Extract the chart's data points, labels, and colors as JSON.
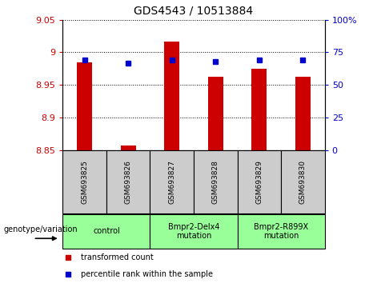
{
  "title": "GDS4543 / 10513884",
  "samples": [
    "GSM693825",
    "GSM693826",
    "GSM693827",
    "GSM693828",
    "GSM693829",
    "GSM693830"
  ],
  "red_values": [
    8.985,
    8.857,
    9.017,
    8.963,
    8.975,
    8.963
  ],
  "blue_values": [
    69,
    67,
    69,
    68,
    69,
    69
  ],
  "ylim": [
    8.85,
    9.05
  ],
  "y2lim": [
    0,
    100
  ],
  "yticks": [
    8.85,
    8.9,
    8.95,
    9.0,
    9.05
  ],
  "ytick_labels": [
    "8.85",
    "8.9",
    "8.95",
    "9",
    "9.05"
  ],
  "y2ticks": [
    0,
    25,
    50,
    75,
    100
  ],
  "y2tick_labels": [
    "0",
    "25",
    "50",
    "75",
    "100%"
  ],
  "red_color": "#cc0000",
  "blue_color": "#0000cc",
  "bar_bottom": 8.85,
  "bar_width": 0.35,
  "legend_red": "transformed count",
  "legend_blue": "percentile rank within the sample",
  "xlabel": "genotype/variation",
  "sample_box_color": "#cccccc",
  "group_box_color": "#99ff99",
  "groups": [
    {
      "label": "control",
      "indices": [
        0,
        1
      ]
    },
    {
      "label": "Bmpr2-Delx4\nmutation",
      "indices": [
        2,
        3
      ]
    },
    {
      "label": "Bmpr2-R899X\nmutation",
      "indices": [
        4,
        5
      ]
    }
  ]
}
